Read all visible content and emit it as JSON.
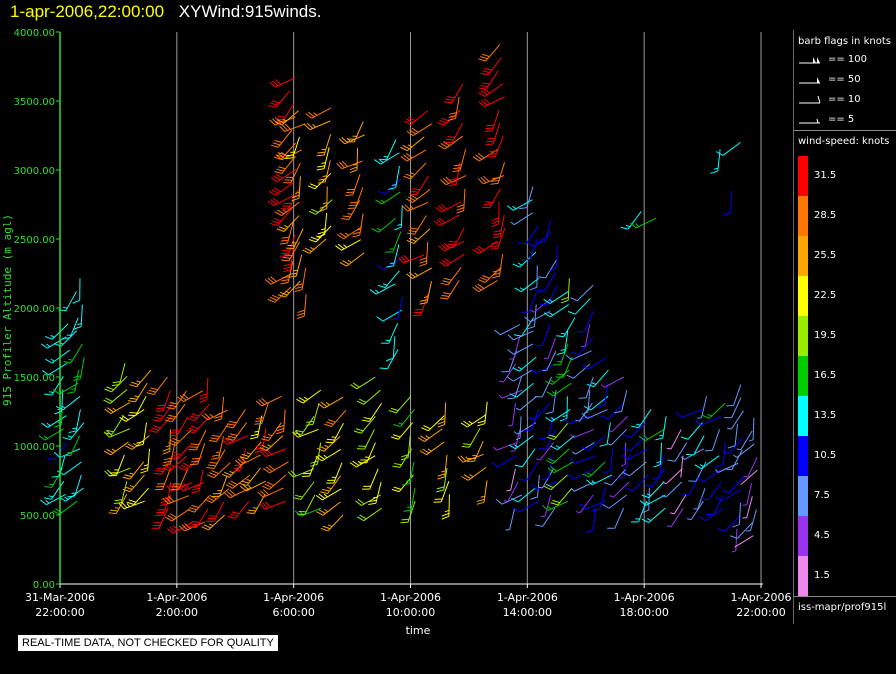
{
  "header": {
    "time_label": "1-apr-2006,22:00:00",
    "plot_name": "XYWind:915winds."
  },
  "colors": {
    "axis": "#33dd33",
    "gridline": "#9a9a9a",
    "title_time": "#ffff00",
    "speed_scale": [
      "#ee88ee",
      "#9933ee",
      "#6699ff",
      "#0000ff",
      "#00ffff",
      "#00cc00",
      "#99ee00",
      "#ffff00",
      "#ffa500",
      "#ff7700",
      "#ff0000"
    ]
  },
  "legend": {
    "barb_title": "barb flags in knots",
    "barb_flags": [
      {
        "label": "== 100",
        "icon": "double-pennant-barb-icon"
      },
      {
        "label": "== 50",
        "icon": "pennant-barb-icon"
      },
      {
        "label": "== 10",
        "icon": "full-flag-barb-icon"
      },
      {
        "label": "== 5",
        "icon": "half-flag-barb-icon"
      }
    ],
    "speed_title": "wind-speed: knots",
    "speed_labels": [
      "31.5",
      "28.5",
      "25.5",
      "22.5",
      "19.5",
      "16.5",
      "13.5",
      "10.5",
      "7.5",
      "4.5",
      "1.5"
    ],
    "source": "iss-mapr/prof915l"
  },
  "footer": {
    "quality_note": "REAL-TIME DATA, NOT CHECKED FOR QUALITY"
  },
  "chart_data": {
    "type": "scatter",
    "subtype": "wind-barb time-height plot",
    "ylabel": "915 Profiler Altitude (m agl)",
    "xlabel": "time",
    "ylim": [
      0,
      4000
    ],
    "yticks": [
      "0.00",
      "500.00",
      "1000.00",
      "1500.00",
      "2000.00",
      "2500.00",
      "3000.00",
      "3500.00",
      "4000.00"
    ],
    "xlim_hours": [
      22,
      46
    ],
    "xticks": [
      {
        "hour": 22,
        "date": "31-Mar-2006",
        "time": "22:00:00"
      },
      {
        "hour": 26,
        "date": "1-Apr-2006",
        "time": "2:00:00"
      },
      {
        "hour": 30,
        "date": "1-Apr-2006",
        "time": "6:00:00"
      },
      {
        "hour": 34,
        "date": "1-Apr-2006",
        "time": "10:00:00"
      },
      {
        "hour": 38,
        "date": "1-Apr-2006",
        "time": "14:00:00"
      },
      {
        "hour": 42,
        "date": "1-Apr-2006",
        "time": "18:00:00"
      },
      {
        "hour": 46,
        "date": "1-Apr-2006",
        "time": "22:00:00"
      }
    ],
    "grid": true,
    "speed_units": "knots",
    "profiles": [
      {
        "t": 22.2,
        "bottom": 650,
        "top": 1900,
        "speed": 14
      },
      {
        "t": 22.7,
        "bottom": 600,
        "top": 2300,
        "speed": 15
      },
      {
        "t": 24.3,
        "bottom": 650,
        "top": 1600,
        "speed": 22
      },
      {
        "t": 25.0,
        "bottom": 600,
        "top": 1600,
        "speed": 25
      },
      {
        "t": 25.8,
        "bottom": 550,
        "top": 1500,
        "speed": 29
      },
      {
        "t": 26.4,
        "bottom": 450,
        "top": 1400,
        "speed": 30
      },
      {
        "t": 27.0,
        "bottom": 450,
        "top": 1550,
        "speed": 31
      },
      {
        "t": 27.7,
        "bottom": 500,
        "top": 1400,
        "speed": 28
      },
      {
        "t": 28.4,
        "bottom": 600,
        "top": 1300,
        "speed": 30
      },
      {
        "t": 29.0,
        "bottom": 650,
        "top": 1350,
        "speed": 27
      },
      {
        "t": 29.7,
        "bottom": 600,
        "top": 1400,
        "speed": 29
      },
      {
        "t": 30.0,
        "bottom": 2150,
        "top": 3750,
        "speed": 31
      },
      {
        "t": 30.3,
        "bottom": 2100,
        "top": 3500,
        "speed": 27
      },
      {
        "t": 30.8,
        "bottom": 550,
        "top": 1450,
        "speed": 20
      },
      {
        "t": 31.2,
        "bottom": 2500,
        "top": 3450,
        "speed": 24
      },
      {
        "t": 31.7,
        "bottom": 500,
        "top": 1400,
        "speed": 26
      },
      {
        "t": 32.3,
        "bottom": 2400,
        "top": 3350,
        "speed": 26
      },
      {
        "t": 32.9,
        "bottom": 550,
        "top": 1500,
        "speed": 21
      },
      {
        "t": 33.6,
        "bottom": 1700,
        "top": 3300,
        "speed": 14
      },
      {
        "t": 34.1,
        "bottom": 600,
        "top": 1450,
        "speed": 19
      },
      {
        "t": 34.6,
        "bottom": 2100,
        "top": 3450,
        "speed": 29
      },
      {
        "t": 35.2,
        "bottom": 650,
        "top": 1400,
        "speed": 24
      },
      {
        "t": 35.8,
        "bottom": 2200,
        "top": 3700,
        "speed": 30
      },
      {
        "t": 36.5,
        "bottom": 750,
        "top": 1400,
        "speed": 23
      },
      {
        "t": 37.1,
        "bottom": 2200,
        "top": 3950,
        "speed": 31
      },
      {
        "t": 37.7,
        "bottom": 550,
        "top": 1900,
        "speed": 6
      },
      {
        "t": 38.3,
        "bottom": 600,
        "top": 2900,
        "speed": 10
      },
      {
        "t": 38.9,
        "bottom": 550,
        "top": 2700,
        "speed": 8
      },
      {
        "t": 39.5,
        "bottom": 600,
        "top": 2250,
        "speed": 17
      },
      {
        "t": 40.2,
        "bottom": 550,
        "top": 2200,
        "speed": 9
      },
      {
        "t": 40.8,
        "bottom": 600,
        "top": 1700,
        "speed": 12
      },
      {
        "t": 41.4,
        "bottom": 550,
        "top": 1500,
        "speed": 8
      },
      {
        "t": 42.1,
        "bottom": 600,
        "top": 1350,
        "speed": 11
      },
      {
        "t": 42.7,
        "bottom": 550,
        "top": 1300,
        "speed": 13
      },
      {
        "t": 43.4,
        "bottom": 550,
        "top": 1200,
        "speed": 5
      },
      {
        "t": 44.0,
        "bottom": 600,
        "top": 1450,
        "speed": 10
      },
      {
        "t": 44.7,
        "bottom": 550,
        "top": 1350,
        "speed": 12
      },
      {
        "t": 45.3,
        "bottom": 400,
        "top": 1450,
        "speed": 7
      },
      {
        "t": 45.8,
        "bottom": 350,
        "top": 1250,
        "speed": 5
      }
    ],
    "isolated_barbs": [
      {
        "t": 41.9,
        "height": 2700,
        "speed": 14
      },
      {
        "t": 42.4,
        "height": 2650,
        "speed": 16
      },
      {
        "t": 44.6,
        "height": 3150,
        "speed": 13
      },
      {
        "t": 45.0,
        "height": 2850,
        "speed": 9
      },
      {
        "t": 45.3,
        "height": 3200,
        "speed": 12
      }
    ]
  }
}
